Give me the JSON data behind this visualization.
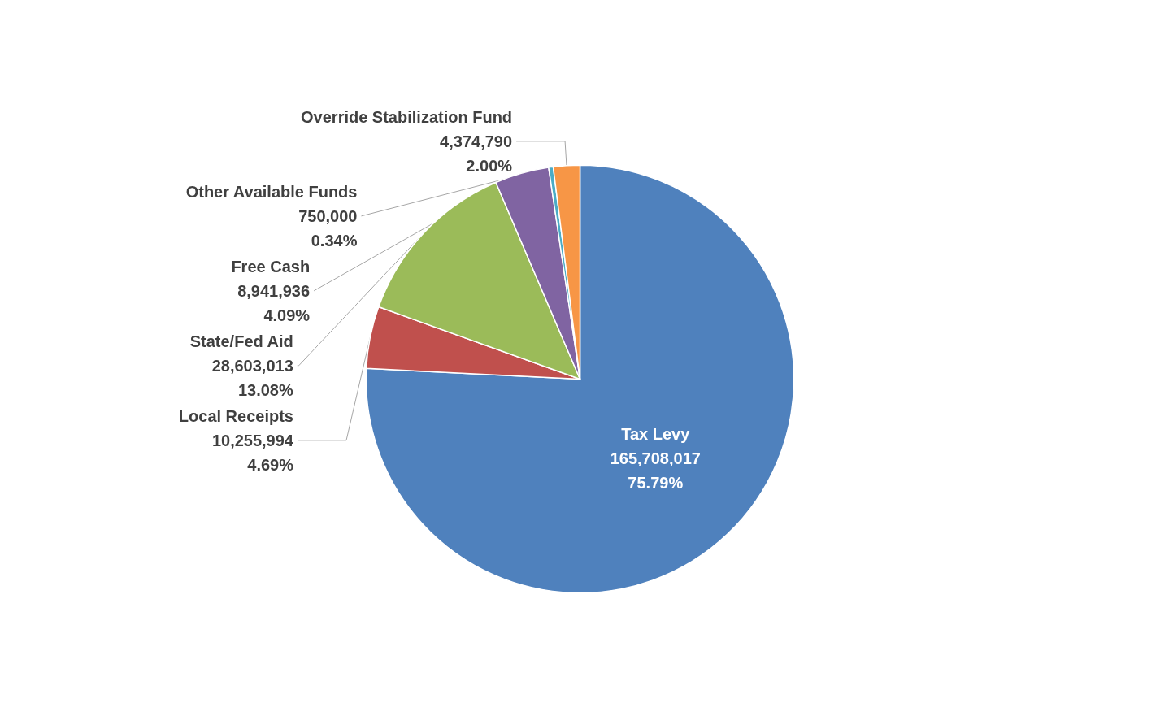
{
  "chart_data": {
    "type": "pie",
    "categories": [
      "Tax Levy",
      "Local Receipts",
      "State/Fed Aid",
      "Free Cash",
      "Other Available Funds",
      "Override Stabilization Fund"
    ],
    "values": [
      165708017,
      10255994,
      28603013,
      8941936,
      750000,
      4374790
    ],
    "colors": [
      "#4f81bd",
      "#c0504d",
      "#9bbb59",
      "#8064a2",
      "#4bacc6",
      "#f79646"
    ],
    "value_labels": [
      "165,708,017\n75.79%",
      "10,255,994\n4.69%",
      "28,603,013\n13.08%",
      "8,941,936\n4.09%",
      "750,000\n0.34%",
      "4,374,790\n2.00%"
    ],
    "legend": false
  }
}
